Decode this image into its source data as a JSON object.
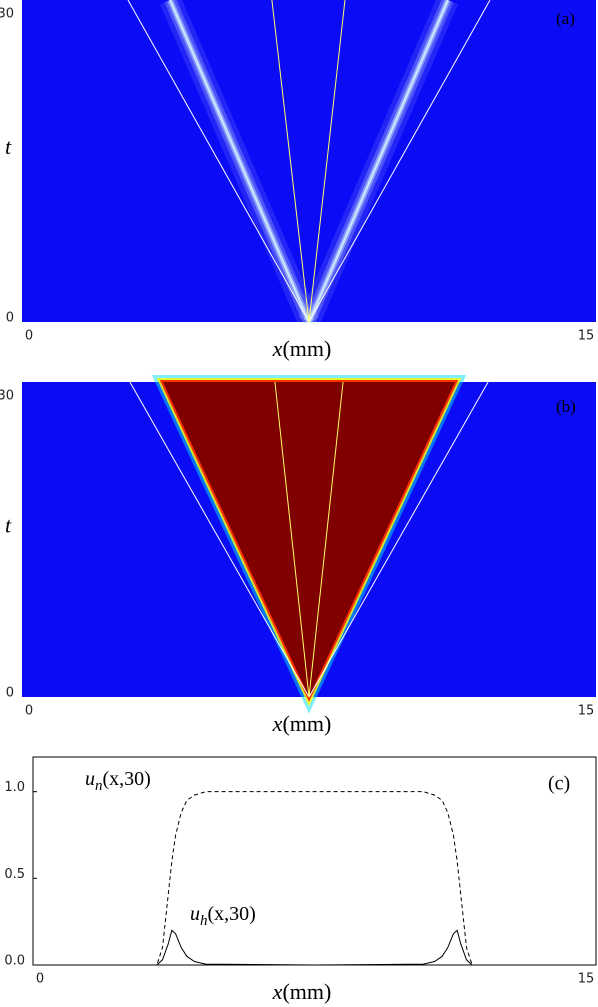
{
  "chart_data": [
    {
      "type": "heatmap",
      "label": "(a)",
      "xlabel_var": "x",
      "xlabel_unit": "(mm)",
      "ylabel": "t",
      "xlim": [
        0,
        15
      ],
      "ylim": [
        0,
        30
      ],
      "xticks": [
        0,
        15
      ],
      "yticks": [
        0,
        30
      ],
      "background": "#0b0bf5",
      "streaks": [
        {
          "color": "#cfe9ff",
          "x": [
            7.5,
            3.87
          ],
          "y": [
            0,
            30
          ]
        },
        {
          "color": "#cfe9ff",
          "x": [
            7.5,
            11.13
          ],
          "y": [
            0,
            30
          ]
        }
      ],
      "lines": [
        {
          "color": "#ffffff",
          "x": [
            7.5,
            2.77
          ],
          "y": [
            0,
            30
          ]
        },
        {
          "color": "#ffffff",
          "x": [
            7.5,
            12.23
          ],
          "y": [
            0,
            30
          ]
        },
        {
          "color": "#ffff66",
          "x": [
            7.5,
            6.53
          ],
          "y": [
            0,
            30
          ]
        },
        {
          "color": "#ffff66",
          "x": [
            7.5,
            8.44
          ],
          "y": [
            0,
            30
          ]
        }
      ]
    },
    {
      "type": "heatmap",
      "label": "(b)",
      "xlabel_var": "x",
      "xlabel_unit": "(mm)",
      "ylabel": "t",
      "xlim": [
        0,
        15
      ],
      "ylim": [
        0,
        30
      ],
      "xticks": [
        0,
        15
      ],
      "yticks": [
        0,
        30
      ],
      "background": "#0b0bf5",
      "region": {
        "color": "#800000",
        "x": [
          7.5,
          3.68,
          11.32
        ],
        "y": [
          0,
          30,
          30
        ]
      },
      "lines": [
        {
          "color": "#ffffff",
          "x": [
            7.5,
            2.82
          ],
          "y": [
            0,
            30
          ]
        },
        {
          "color": "#ffffff",
          "x": [
            7.5,
            12.18
          ],
          "y": [
            0,
            30
          ]
        },
        {
          "color": "#ffff66",
          "x": [
            7.5,
            6.61
          ],
          "y": [
            0,
            30
          ]
        },
        {
          "color": "#ffff66",
          "x": [
            7.5,
            8.39
          ],
          "y": [
            0,
            30
          ]
        }
      ]
    },
    {
      "type": "line",
      "label": "(c)",
      "xlabel_var": "x",
      "xlabel_unit": "(mm)",
      "xlim": [
        0,
        15
      ],
      "ylim": [
        0,
        1.2
      ],
      "xticks": [
        0,
        15
      ],
      "yticks": [
        {
          "value": 0,
          "label": "0.0"
        },
        {
          "value": 0.5,
          "label": "0.5"
        },
        {
          "value": 1,
          "label": "1.0"
        }
      ],
      "x": [
        0,
        3.3,
        3.45,
        3.6,
        3.7,
        3.8,
        3.95,
        4.1,
        4.3,
        4.6,
        7.5,
        10.4,
        10.7,
        10.9,
        11.05,
        11.2,
        11.3,
        11.4,
        11.55,
        11.7,
        15
      ],
      "series": [
        {
          "color": "#000000",
          "dashed": true,
          "values": [
            0,
            0,
            0.1,
            0.4,
            0.6,
            0.75,
            0.88,
            0.95,
            0.98,
            1.0,
            1.0,
            1.0,
            0.98,
            0.95,
            0.88,
            0.75,
            0.6,
            0.4,
            0.1,
            0,
            0
          ]
        },
        {
          "color": "#000000",
          "dashed": false,
          "values": [
            0,
            0,
            0.03,
            0.12,
            0.2,
            0.18,
            0.1,
            0.05,
            0.02,
            0.005,
            0,
            0.005,
            0.02,
            0.05,
            0.1,
            0.18,
            0.2,
            0.12,
            0.03,
            0,
            0
          ]
        }
      ],
      "annotations": [
        {
          "main": "u",
          "sub": "n",
          "rest": "(x,30)"
        },
        {
          "main": "u",
          "sub": "h",
          "rest": "(x,30)"
        }
      ]
    }
  ]
}
